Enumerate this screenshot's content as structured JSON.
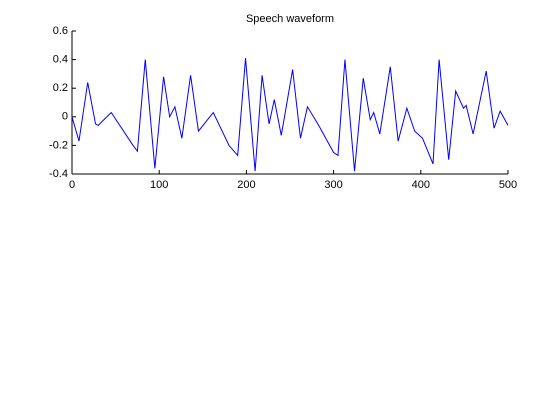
{
  "chart_data": {
    "type": "line",
    "title": "Speech waveform",
    "x": [
      0,
      8,
      18,
      27,
      30,
      45,
      70,
      75,
      84,
      95,
      105,
      112,
      118,
      126,
      136,
      145,
      162,
      180,
      190,
      199,
      210,
      218,
      226,
      232,
      240,
      253,
      262,
      270,
      282,
      300,
      305,
      313,
      324,
      334,
      342,
      346,
      353,
      365,
      374,
      384,
      393,
      402,
      414,
      421,
      432,
      440,
      449,
      452,
      460,
      475,
      484,
      491,
      500
    ],
    "series": [
      {
        "color": "#0000ff",
        "values": [
          0,
          -0.17,
          0.24,
          -0.05,
          -0.06,
          0.03,
          -0.2,
          -0.24,
          0.4,
          -0.36,
          0.28,
          0.0,
          0.07,
          -0.15,
          0.29,
          -0.1,
          0.03,
          -0.2,
          -0.27,
          0.41,
          -0.38,
          0.29,
          -0.05,
          0.12,
          -0.13,
          0.33,
          -0.15,
          0.07,
          -0.05,
          -0.25,
          -0.27,
          0.4,
          -0.38,
          0.27,
          -0.02,
          0.03,
          -0.12,
          0.35,
          -0.17,
          0.06,
          -0.1,
          -0.15,
          -0.33,
          0.4,
          -0.3,
          0.18,
          0.06,
          0.08,
          -0.12,
          0.32,
          -0.08,
          0.04,
          -0.06
        ]
      }
    ],
    "xlim": [
      0,
      500
    ],
    "xticks": [
      0,
      100,
      200,
      300,
      400,
      500
    ],
    "ylim": [
      -0.4,
      0.6
    ],
    "yticks": [
      -0.4,
      -0.2,
      0,
      0.2,
      0.4,
      0.6
    ]
  }
}
